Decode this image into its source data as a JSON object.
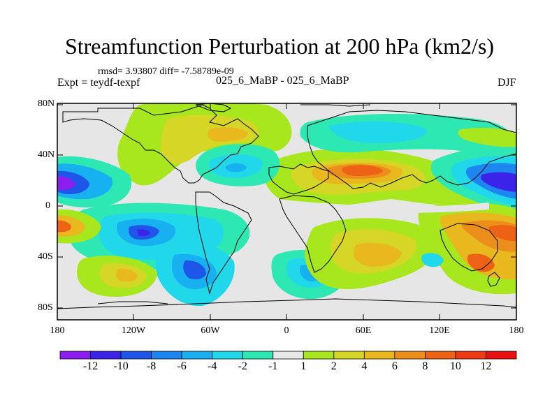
{
  "title": "Streamfunction Perturbation at 200 hPa (km2/s)",
  "stats_text": "rmsd= 3.93807  diff= -7.58789e-09",
  "left_label": "Expt = teydf-texpf",
  "center_label": "025_6_MaBP - 025_6_MaBP",
  "right_label": "DJF",
  "y_ticks": [
    "80N",
    "40N",
    "0",
    "40S",
    "80S"
  ],
  "x_ticks": [
    "180",
    "120W",
    "60W",
    "0",
    "60E",
    "120E",
    "180"
  ],
  "colorbar_labels": [
    "-12",
    "-10",
    "-8",
    "-6",
    "-4",
    "-2",
    "-1",
    "1",
    "2",
    "4",
    "6",
    "8",
    "10",
    "12"
  ],
  "colorbar_colors": [
    "#8a1ff0",
    "#3b23e8",
    "#1f56ea",
    "#1d86f0",
    "#17b0f0",
    "#20d8ea",
    "#2ee8b4",
    "#e8e8e8",
    "#a8e61e",
    "#d6d626",
    "#e8b81e",
    "#ec8e1c",
    "#ee6216",
    "#ef3a14",
    "#e81010"
  ]
}
